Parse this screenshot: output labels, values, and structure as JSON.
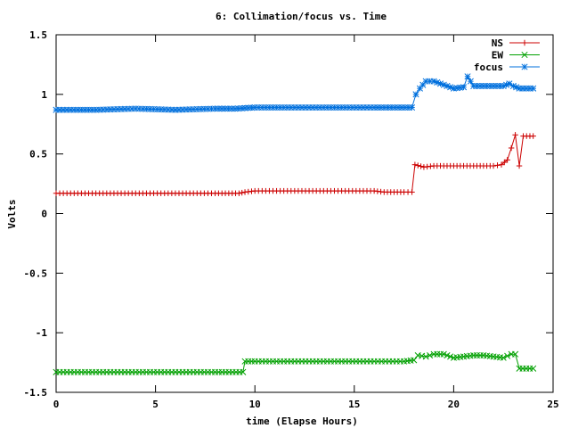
{
  "chart_data": {
    "type": "line",
    "title": "6: Collimation/focus vs. Time",
    "xlabel": "time (Elapse Hours)",
    "ylabel": "Volts",
    "xlim": [
      0,
      25
    ],
    "ylim": [
      -1.5,
      1.5
    ],
    "x_ticks": [
      "0",
      "5",
      "10",
      "15",
      "20",
      "25"
    ],
    "y_ticks": [
      "-1.5",
      "-1",
      "-0.5",
      "0",
      "0.5",
      "1",
      "1.5"
    ],
    "grid": false,
    "legend_position": "top-right",
    "series": [
      {
        "name": "NS",
        "color": "#cc0000",
        "marker": "plus",
        "points": [
          [
            0,
            0.17
          ],
          [
            2,
            0.17
          ],
          [
            4,
            0.17
          ],
          [
            6,
            0.17
          ],
          [
            8,
            0.17
          ],
          [
            9.2,
            0.17
          ],
          [
            9.5,
            0.18
          ],
          [
            10,
            0.19
          ],
          [
            12,
            0.19
          ],
          [
            14,
            0.19
          ],
          [
            16,
            0.19
          ],
          [
            16.5,
            0.18
          ],
          [
            17.5,
            0.18
          ],
          [
            17.9,
            0.18
          ],
          [
            18.05,
            0.41
          ],
          [
            18.5,
            0.39
          ],
          [
            19,
            0.4
          ],
          [
            20,
            0.4
          ],
          [
            21,
            0.4
          ],
          [
            22,
            0.4
          ],
          [
            22.4,
            0.41
          ],
          [
            22.7,
            0.45
          ],
          [
            22.9,
            0.55
          ],
          [
            23.1,
            0.66
          ],
          [
            23.3,
            0.4
          ],
          [
            23.5,
            0.65
          ],
          [
            24,
            0.65
          ]
        ]
      },
      {
        "name": "EW",
        "color": "#00a000",
        "marker": "cross",
        "points": [
          [
            0,
            -1.33
          ],
          [
            2,
            -1.33
          ],
          [
            4,
            -1.33
          ],
          [
            6,
            -1.33
          ],
          [
            8,
            -1.33
          ],
          [
            9.4,
            -1.33
          ],
          [
            9.5,
            -1.24
          ],
          [
            10,
            -1.24
          ],
          [
            12,
            -1.24
          ],
          [
            14,
            -1.24
          ],
          [
            16,
            -1.24
          ],
          [
            17.5,
            -1.24
          ],
          [
            18,
            -1.23
          ],
          [
            18.2,
            -1.19
          ],
          [
            18.6,
            -1.2
          ],
          [
            19,
            -1.18
          ],
          [
            19.5,
            -1.18
          ],
          [
            20,
            -1.21
          ],
          [
            20.5,
            -1.2
          ],
          [
            21,
            -1.19
          ],
          [
            21.5,
            -1.19
          ],
          [
            22,
            -1.2
          ],
          [
            22.5,
            -1.21
          ],
          [
            22.9,
            -1.18
          ],
          [
            23.1,
            -1.18
          ],
          [
            23.3,
            -1.3
          ],
          [
            24,
            -1.3
          ]
        ]
      },
      {
        "name": "focus",
        "color": "#0070dd",
        "marker": "star",
        "points": [
          [
            0,
            0.87
          ],
          [
            2,
            0.87
          ],
          [
            4,
            0.88
          ],
          [
            6,
            0.87
          ],
          [
            8,
            0.88
          ],
          [
            9,
            0.88
          ],
          [
            10,
            0.89
          ],
          [
            12,
            0.89
          ],
          [
            14,
            0.89
          ],
          [
            16,
            0.89
          ],
          [
            17.9,
            0.89
          ],
          [
            18.1,
            1.0
          ],
          [
            18.3,
            1.05
          ],
          [
            18.6,
            1.11
          ],
          [
            19,
            1.11
          ],
          [
            19.5,
            1.08
          ],
          [
            20,
            1.05
          ],
          [
            20.5,
            1.06
          ],
          [
            20.7,
            1.15
          ],
          [
            21,
            1.07
          ],
          [
            22,
            1.07
          ],
          [
            22.5,
            1.07
          ],
          [
            22.8,
            1.09
          ],
          [
            23,
            1.07
          ],
          [
            23.3,
            1.05
          ],
          [
            24,
            1.05
          ]
        ]
      }
    ]
  }
}
